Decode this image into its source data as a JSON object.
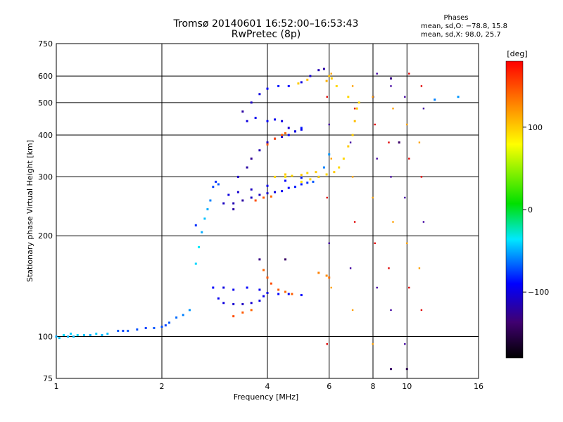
{
  "chart_data": {
    "type": "scatter",
    "title": "Tromsø 20140601 16:52:00–16:53:43",
    "subtitle": "RwPretec (8p)",
    "xlabel": "Frequency [MHz]",
    "ylabel": "Stationary phase Virtual Height [km]",
    "x_scale": "log",
    "y_scale": "log",
    "xlim": [
      1,
      16
    ],
    "ylim": [
      75,
      750
    ],
    "x_ticks": [
      1,
      2,
      4,
      6,
      8,
      10,
      16
    ],
    "x_tick_labels": [
      "1",
      "2",
      "4",
      "6",
      "8",
      "10",
      "16"
    ],
    "y_ticks": [
      75,
      100,
      200,
      300,
      400,
      500,
      600,
      750
    ],
    "y_tick_labels": [
      "75",
      "100",
      "200",
      "300",
      "400",
      "500",
      "600",
      "750"
    ],
    "grid": true,
    "stats": {
      "title": "Phases",
      "line_o": "mean, sd,O: −78.8, 15.8",
      "line_x": "mean, sd,X:  98.0, 25.7"
    },
    "colorbar": {
      "label": "[deg]",
      "range": [
        -180,
        180
      ],
      "ticks": [
        100,
        0,
        -100
      ],
      "tick_labels": [
        "100",
        "0",
        "−100"
      ],
      "colormap": "rainbow"
    },
    "series": [
      {
        "points": [
          [
            1.0,
            100,
            -50
          ],
          [
            1.02,
            99,
            -45
          ],
          [
            1.05,
            101,
            -40
          ],
          [
            1.08,
            100,
            -48
          ],
          [
            1.1,
            102,
            -42
          ],
          [
            1.12,
            100,
            -45
          ],
          [
            1.15,
            101,
            -40
          ],
          [
            1.2,
            101,
            -45
          ],
          [
            1.25,
            101,
            -50
          ],
          [
            1.3,
            102,
            -42
          ],
          [
            1.35,
            101,
            -48
          ],
          [
            1.4,
            102,
            -45
          ],
          [
            1.5,
            104,
            -70
          ],
          [
            1.55,
            104,
            -75
          ],
          [
            1.6,
            104,
            -70
          ],
          [
            1.7,
            105,
            -72
          ],
          [
            1.8,
            106,
            -75
          ],
          [
            1.9,
            106,
            -70
          ],
          [
            2.0,
            107,
            -72
          ],
          [
            2.05,
            108,
            -75
          ],
          [
            2.1,
            110,
            -70
          ],
          [
            2.2,
            114,
            -65
          ],
          [
            2.3,
            116,
            -60
          ],
          [
            2.4,
            120,
            -55
          ],
          [
            2.5,
            165,
            -40
          ],
          [
            2.55,
            185,
            -35
          ],
          [
            2.6,
            205,
            -50
          ],
          [
            2.65,
            225,
            -45
          ],
          [
            2.7,
            240,
            -50
          ],
          [
            2.75,
            255,
            -60
          ],
          [
            2.8,
            280,
            -75
          ],
          [
            2.85,
            290,
            -80
          ],
          [
            2.9,
            285,
            -70
          ],
          [
            2.8,
            140,
            -90
          ],
          [
            2.9,
            130,
            -95
          ],
          [
            3.0,
            126,
            -100
          ],
          [
            3.2,
            125,
            -105
          ],
          [
            3.4,
            125,
            -110
          ],
          [
            3.6,
            126,
            -105
          ],
          [
            3.8,
            128,
            -100
          ],
          [
            3.9,
            132,
            -95
          ],
          [
            3.0,
            140,
            -100
          ],
          [
            3.2,
            138,
            -95
          ],
          [
            3.5,
            140,
            -90
          ],
          [
            3.8,
            138,
            -95
          ],
          [
            4.0,
            135,
            -100
          ],
          [
            4.3,
            134,
            -90
          ],
          [
            4.6,
            134,
            -95
          ],
          [
            5.0,
            133,
            -90
          ],
          [
            3.0,
            250,
            -110
          ],
          [
            3.2,
            250,
            -115
          ],
          [
            3.4,
            255,
            -120
          ],
          [
            3.6,
            260,
            -110
          ],
          [
            3.8,
            265,
            -110
          ],
          [
            4.0,
            268,
            -105
          ],
          [
            4.2,
            270,
            -100
          ],
          [
            4.4,
            272,
            -95
          ],
          [
            4.6,
            278,
            -90
          ],
          [
            4.8,
            280,
            -85
          ],
          [
            5.0,
            285,
            -85
          ],
          [
            5.2,
            288,
            -80
          ],
          [
            5.4,
            290,
            -70
          ],
          [
            5.6,
            300,
            -65
          ],
          [
            5.8,
            320,
            -60
          ],
          [
            6.0,
            350,
            -55
          ],
          [
            3.1,
            265,
            -100
          ],
          [
            3.3,
            270,
            -105
          ],
          [
            3.6,
            275,
            -110
          ],
          [
            4.0,
            282,
            -95
          ],
          [
            4.5,
            292,
            -90
          ],
          [
            5.0,
            298,
            -85
          ],
          [
            3.3,
            300,
            -110
          ],
          [
            3.5,
            320,
            -120
          ],
          [
            3.6,
            340,
            -125
          ],
          [
            3.8,
            360,
            -115
          ],
          [
            4.0,
            380,
            -110
          ],
          [
            4.2,
            390,
            -100
          ],
          [
            4.4,
            395,
            -105
          ],
          [
            4.6,
            400,
            -95
          ],
          [
            4.8,
            410,
            -90
          ],
          [
            5.0,
            420,
            -85
          ],
          [
            3.5,
            440,
            -100
          ],
          [
            3.7,
            450,
            -95
          ],
          [
            4.0,
            440,
            -90
          ],
          [
            4.2,
            445,
            -95
          ],
          [
            4.4,
            440,
            -100
          ],
          [
            4.6,
            420,
            -105
          ],
          [
            4.8,
            410,
            -100
          ],
          [
            5.0,
            415,
            -95
          ],
          [
            3.4,
            470,
            -120
          ],
          [
            3.6,
            500,
            -110
          ],
          [
            3.8,
            530,
            -100
          ],
          [
            4.0,
            550,
            -90
          ],
          [
            4.3,
            560,
            -85
          ],
          [
            4.6,
            560,
            -90
          ],
          [
            5.0,
            575,
            -100
          ],
          [
            5.3,
            600,
            -105
          ],
          [
            5.6,
            625,
            -115
          ],
          [
            5.8,
            630,
            -120
          ],
          [
            2.5,
            215,
            -80
          ],
          [
            3.2,
            240,
            -120
          ],
          [
            3.8,
            170,
            -130
          ],
          [
            4.5,
            170,
            -140
          ],
          [
            8.0,
            520,
            -150
          ],
          [
            9.0,
            590,
            -130
          ],
          [
            9.5,
            380,
            -140
          ],
          [
            10.0,
            80,
            -150
          ],
          [
            9.0,
            80,
            -140
          ],
          [
            12.0,
            510,
            -60
          ],
          [
            14.0,
            520,
            -55
          ]
        ]
      },
      {
        "points": [
          [
            3.9,
            158,
            140
          ],
          [
            4.0,
            150,
            145
          ],
          [
            4.1,
            144,
            150
          ],
          [
            4.3,
            138,
            145
          ],
          [
            4.5,
            136,
            140
          ],
          [
            4.7,
            134,
            145
          ],
          [
            3.7,
            255,
            150
          ],
          [
            3.9,
            260,
            145
          ],
          [
            4.1,
            262,
            140
          ],
          [
            4.0,
            375,
            145
          ],
          [
            4.2,
            390,
            150
          ],
          [
            4.4,
            400,
            145
          ],
          [
            4.5,
            405,
            140
          ],
          [
            3.2,
            115,
            150
          ],
          [
            3.4,
            118,
            145
          ],
          [
            3.6,
            120,
            140
          ],
          [
            5.6,
            155,
            130
          ],
          [
            5.9,
            152,
            125
          ],
          [
            6.0,
            150,
            135
          ]
        ]
      },
      {
        "points": [
          [
            5.0,
            290,
            90
          ],
          [
            5.3,
            295,
            95
          ],
          [
            5.6,
            300,
            100
          ],
          [
            5.9,
            305,
            95
          ],
          [
            6.2,
            310,
            100
          ],
          [
            6.4,
            320,
            95
          ],
          [
            6.6,
            340,
            95
          ],
          [
            6.8,
            370,
            100
          ],
          [
            7.0,
            400,
            100
          ],
          [
            7.1,
            440,
            105
          ],
          [
            7.2,
            480,
            100
          ],
          [
            7.3,
            500,
            95
          ],
          [
            5.9,
            580,
            110
          ],
          [
            6.0,
            600,
            105
          ],
          [
            6.1,
            590,
            100
          ],
          [
            6.3,
            560,
            95
          ],
          [
            4.9,
            570,
            100
          ],
          [
            5.2,
            585,
            105
          ],
          [
            6.8,
            520,
            95
          ],
          [
            4.2,
            300,
            95
          ],
          [
            4.5,
            305,
            100
          ]
        ]
      },
      {
        "points": [
          [
            4.5,
            300,
            90
          ],
          [
            4.7,
            302,
            95
          ],
          [
            5.0,
            304,
            100
          ],
          [
            5.2,
            308,
            95
          ],
          [
            5.5,
            310,
            100
          ]
        ]
      }
    ],
    "scattered_markers": {
      "columns_mhz": [
        6.0,
        7.0,
        8.1,
        9.0,
        10.0,
        11.0
      ],
      "heights_km": [
        95,
        120,
        140,
        160,
        190,
        220,
        260,
        300,
        340,
        380,
        430,
        480,
        520,
        560,
        610
      ]
    }
  }
}
